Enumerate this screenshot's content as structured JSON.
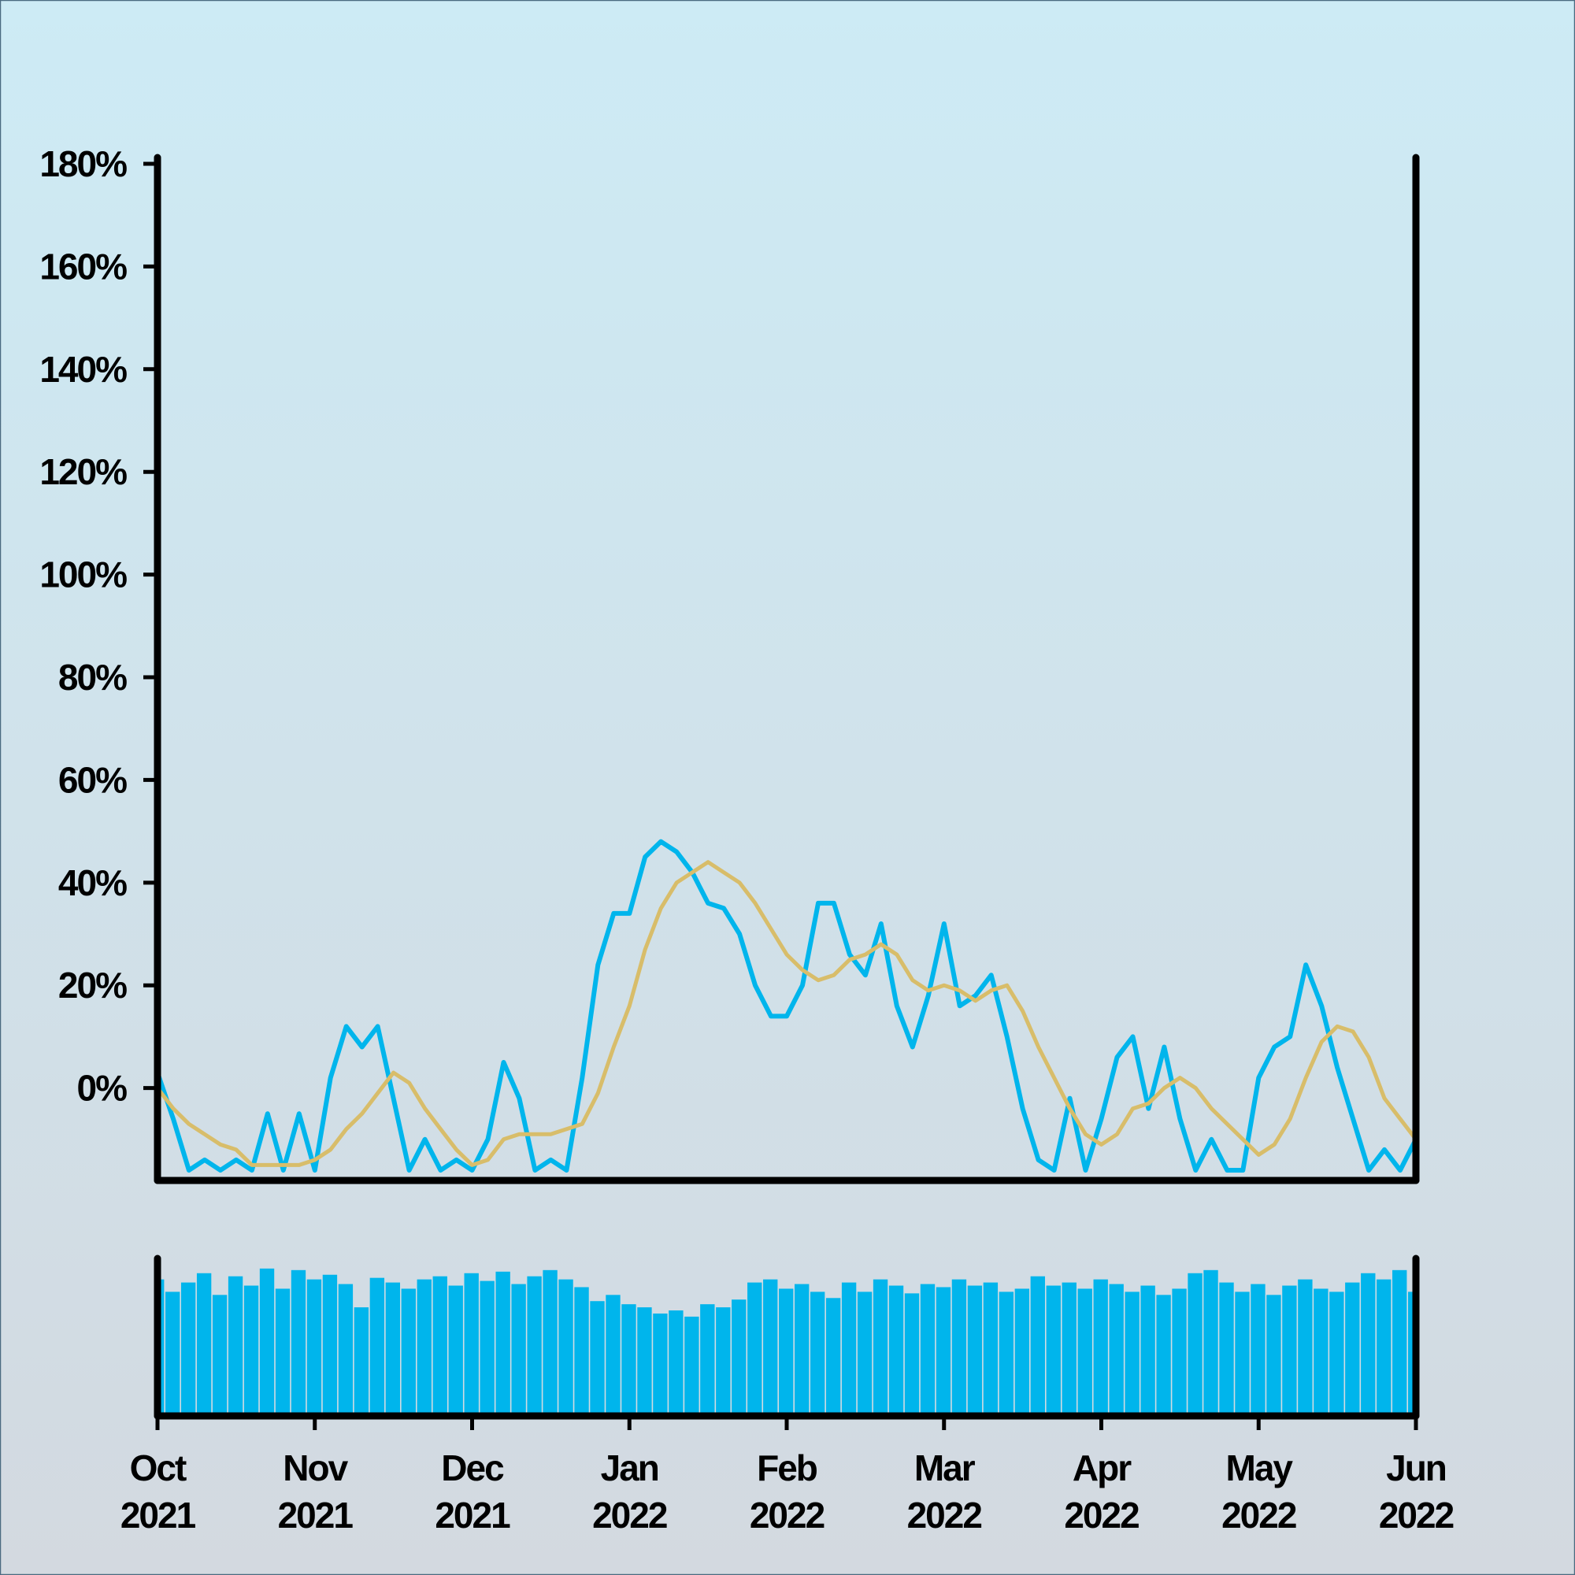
{
  "chart_data": [
    {
      "type": "line",
      "x": [
        0,
        0.1,
        0.2,
        0.3,
        0.4,
        0.5,
        0.6,
        0.7,
        0.8,
        0.9,
        1,
        1.1,
        1.2,
        1.3,
        1.4,
        1.5,
        1.6,
        1.7,
        1.8,
        1.9,
        2,
        2.1,
        2.2,
        2.3,
        2.4,
        2.5,
        2.6,
        2.7,
        2.8,
        2.9,
        3,
        3.1,
        3.2,
        3.3,
        3.4,
        3.5,
        3.6,
        3.7,
        3.8,
        3.9,
        4,
        4.1,
        4.2,
        4.3,
        4.4,
        4.5,
        4.6,
        4.7,
        4.8,
        4.9,
        5,
        5.1,
        5.2,
        5.3,
        5.4,
        5.5,
        5.6,
        5.7,
        5.8,
        5.9,
        6,
        6.1,
        6.2,
        6.3,
        6.4,
        6.5,
        6.6,
        6.7,
        6.8,
        6.9,
        7,
        7.1,
        7.2,
        7.3,
        7.4,
        7.5,
        7.6,
        7.7,
        7.8,
        7.9,
        8
      ],
      "series": [
        {
          "color": "#00b5ec",
          "values": [
            3,
            -6,
            -16,
            -14,
            -16,
            -14,
            -16,
            -5,
            -16,
            -5,
            -16,
            2,
            12,
            8,
            12,
            -2,
            -16,
            -10,
            -16,
            -14,
            -16,
            -10,
            5,
            -2,
            -16,
            -14,
            -16,
            2,
            24,
            34,
            34,
            45,
            48,
            46,
            42,
            36,
            35,
            30,
            20,
            14,
            14,
            20,
            36,
            36,
            26,
            22,
            32,
            16,
            8,
            18,
            32,
            16,
            18,
            22,
            10,
            -4,
            -14,
            -16,
            -2,
            -16,
            -6,
            6,
            10,
            -4,
            8,
            -6,
            -16,
            -10,
            -16,
            -16,
            2,
            8,
            10,
            24,
            16,
            4,
            -6,
            -16,
            -12,
            -16,
            -10
          ]
        },
        {
          "color": "#d8bd6a",
          "values": [
            0,
            -4,
            -7,
            -9,
            -11,
            -12,
            -15,
            -15,
            -15,
            -15,
            -14,
            -12,
            -8,
            -5,
            -1,
            3,
            1,
            -4,
            -8,
            -12,
            -15,
            -14,
            -10,
            -9,
            -9,
            -9,
            -8,
            -7,
            -1,
            8,
            16,
            27,
            35,
            40,
            42,
            44,
            42,
            40,
            36,
            31,
            26,
            23,
            21,
            22,
            25,
            26,
            28,
            26,
            21,
            19,
            20,
            19,
            17,
            19,
            20,
            15,
            8,
            2,
            -4,
            -9,
            -11,
            -9,
            -4,
            -3,
            0,
            2,
            0,
            -4,
            -7,
            -10,
            -13,
            -11,
            -6,
            2,
            9,
            12,
            11,
            6,
            -2,
            -6,
            -10
          ]
        }
      ],
      "xlim": [
        0,
        8
      ],
      "ylim": [
        -18,
        180
      ],
      "yticks": [
        {
          "value": 0,
          "label": "0%"
        },
        {
          "value": 20,
          "label": "20%"
        },
        {
          "value": 40,
          "label": "40%"
        },
        {
          "value": 60,
          "label": "60%"
        },
        {
          "value": 80,
          "label": "80%"
        },
        {
          "value": 100,
          "label": "100%"
        },
        {
          "value": 120,
          "label": "120%"
        },
        {
          "value": 140,
          "label": "140%"
        },
        {
          "value": 160,
          "label": "160%"
        },
        {
          "value": 180,
          "label": "180%"
        }
      ]
    },
    {
      "type": "bar",
      "x": [
        0,
        0.1,
        0.2,
        0.3,
        0.4,
        0.5,
        0.6,
        0.7,
        0.8,
        0.9,
        1,
        1.1,
        1.2,
        1.3,
        1.4,
        1.5,
        1.6,
        1.7,
        1.8,
        1.9,
        2,
        2.1,
        2.2,
        2.3,
        2.4,
        2.5,
        2.6,
        2.7,
        2.8,
        2.9,
        3,
        3.1,
        3.2,
        3.3,
        3.4,
        3.5,
        3.6,
        3.7,
        3.8,
        3.9,
        4,
        4.1,
        4.2,
        4.3,
        4.4,
        4.5,
        4.6,
        4.7,
        4.8,
        4.9,
        5,
        5.1,
        5.2,
        5.3,
        5.4,
        5.5,
        5.6,
        5.7,
        5.8,
        5.9,
        6,
        6.1,
        6.2,
        6.3,
        6.4,
        6.5,
        6.6,
        6.7,
        6.8,
        6.9,
        7,
        7.1,
        7.2,
        7.3,
        7.4,
        7.5,
        7.6,
        7.7,
        7.8,
        7.9,
        8
      ],
      "values": [
        88,
        80,
        86,
        92,
        78,
        90,
        84,
        95,
        82,
        94,
        88,
        91,
        85,
        70,
        89,
        86,
        82,
        88,
        90,
        84,
        92,
        87,
        93,
        85,
        90,
        94,
        88,
        83,
        74,
        78,
        72,
        70,
        66,
        68,
        64,
        72,
        70,
        75,
        86,
        88,
        82,
        85,
        80,
        76,
        86,
        80,
        88,
        84,
        79,
        85,
        83,
        88,
        84,
        86,
        80,
        82,
        90,
        84,
        86,
        82,
        88,
        85,
        80,
        84,
        78,
        82,
        92,
        94,
        86,
        80,
        85,
        78,
        84,
        88,
        82,
        80,
        86,
        92,
        88,
        94,
        80
      ],
      "color": "#00b5ec",
      "ylim": [
        0,
        100
      ],
      "xlim": [
        0,
        8
      ],
      "xticks": [
        {
          "value": 0,
          "label": "Oct 2021"
        },
        {
          "value": 1,
          "label": "Nov 2021"
        },
        {
          "value": 2,
          "label": "Dec 2021"
        },
        {
          "value": 3,
          "label": "Jan 2022"
        },
        {
          "value": 4,
          "label": "Feb 2022"
        },
        {
          "value": 5,
          "label": "Mar 2022"
        },
        {
          "value": 6,
          "label": "Apr 2022"
        },
        {
          "value": 7,
          "label": "May 2022"
        },
        {
          "value": 8,
          "label": "Jun 2022"
        }
      ]
    }
  ]
}
